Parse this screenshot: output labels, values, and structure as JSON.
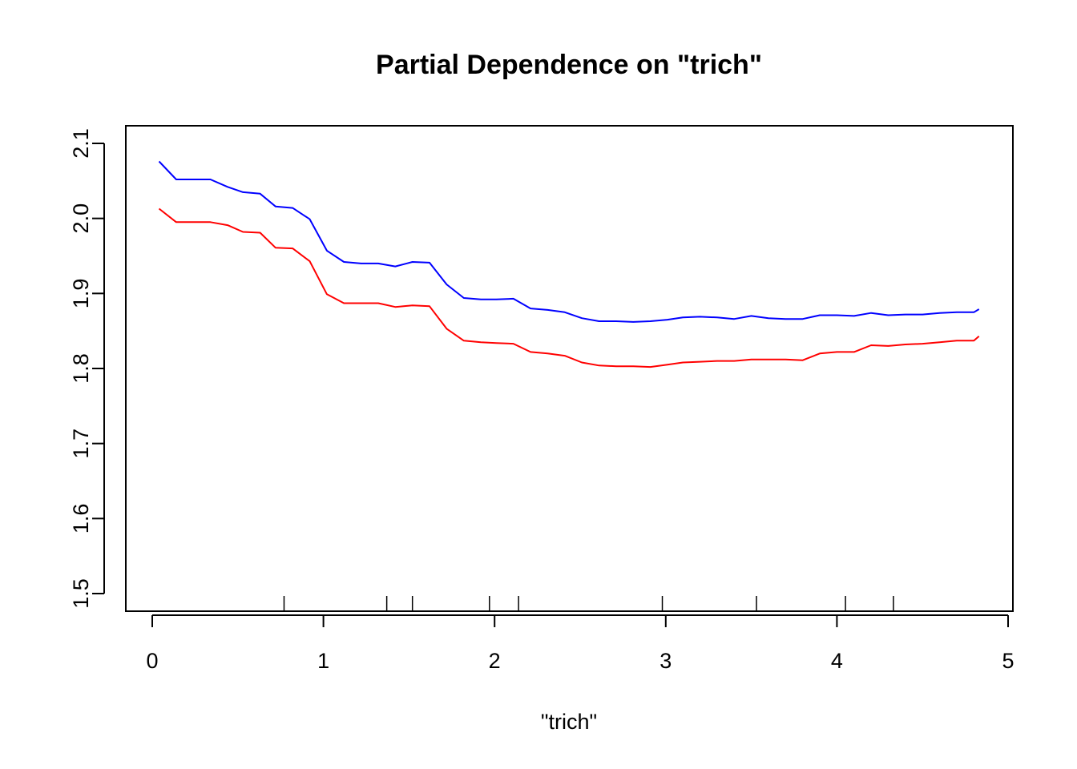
{
  "chart_data": {
    "type": "line",
    "title": "Partial Dependence on \"trich\"",
    "xlabel": "\"trich\"",
    "ylabel": "",
    "xlim": [
      0,
      5
    ],
    "ylim": [
      1.5,
      2.1
    ],
    "x_ticks": [
      "0",
      "1",
      "2",
      "3",
      "4",
      "5"
    ],
    "y_ticks": [
      "1.5",
      "1.6",
      "1.7",
      "1.8",
      "1.9",
      "2.0",
      "2.1"
    ],
    "grid": false,
    "legend": "none",
    "rug": [
      0.77,
      1.37,
      1.52,
      1.97,
      2.14,
      2.98,
      3.53,
      4.05,
      4.33
    ],
    "series": [
      {
        "color": "#0000ff",
        "x": [
          0.04,
          0.14,
          0.24,
          0.34,
          0.44,
          0.53,
          0.63,
          0.72,
          0.82,
          0.92,
          1.02,
          1.12,
          1.22,
          1.32,
          1.42,
          1.52,
          1.62,
          1.72,
          1.82,
          1.92,
          2.01,
          2.11,
          2.21,
          2.31,
          2.41,
          2.51,
          2.61,
          2.71,
          2.81,
          2.91,
          3.01,
          3.1,
          3.2,
          3.3,
          3.4,
          3.5,
          3.6,
          3.7,
          3.8,
          3.9,
          4.0,
          4.1,
          4.2,
          4.3,
          4.4,
          4.5,
          4.6,
          4.7,
          4.8,
          4.83
        ],
        "y": [
          2.076,
          2.052,
          2.052,
          2.052,
          2.042,
          2.035,
          2.033,
          2.016,
          2.014,
          1.999,
          1.957,
          1.942,
          1.94,
          1.94,
          1.936,
          1.942,
          1.941,
          1.912,
          1.894,
          1.892,
          1.892,
          1.893,
          1.88,
          1.878,
          1.875,
          1.867,
          1.863,
          1.863,
          1.862,
          1.863,
          1.865,
          1.868,
          1.869,
          1.868,
          1.866,
          1.87,
          1.867,
          1.866,
          1.866,
          1.871,
          1.871,
          1.87,
          1.874,
          1.871,
          1.872,
          1.872,
          1.874,
          1.875,
          1.875,
          1.879
        ]
      },
      {
        "color": "#ff0000",
        "x": [
          0.04,
          0.14,
          0.24,
          0.34,
          0.44,
          0.53,
          0.63,
          0.72,
          0.82,
          0.92,
          1.02,
          1.12,
          1.22,
          1.32,
          1.42,
          1.52,
          1.62,
          1.72,
          1.82,
          1.92,
          2.01,
          2.11,
          2.21,
          2.31,
          2.41,
          2.51,
          2.61,
          2.71,
          2.81,
          2.91,
          3.01,
          3.1,
          3.2,
          3.3,
          3.4,
          3.5,
          3.6,
          3.7,
          3.8,
          3.9,
          4.0,
          4.1,
          4.2,
          4.3,
          4.4,
          4.5,
          4.6,
          4.7,
          4.8,
          4.83
        ],
        "y": [
          2.013,
          1.995,
          1.995,
          1.995,
          1.991,
          1.982,
          1.981,
          1.961,
          1.96,
          1.943,
          1.899,
          1.887,
          1.887,
          1.887,
          1.882,
          1.884,
          1.883,
          1.853,
          1.837,
          1.835,
          1.834,
          1.833,
          1.822,
          1.82,
          1.817,
          1.808,
          1.804,
          1.803,
          1.803,
          1.802,
          1.805,
          1.808,
          1.809,
          1.81,
          1.81,
          1.812,
          1.812,
          1.812,
          1.811,
          1.82,
          1.822,
          1.822,
          1.831,
          1.83,
          1.832,
          1.833,
          1.835,
          1.837,
          1.837,
          1.843
        ]
      }
    ]
  }
}
